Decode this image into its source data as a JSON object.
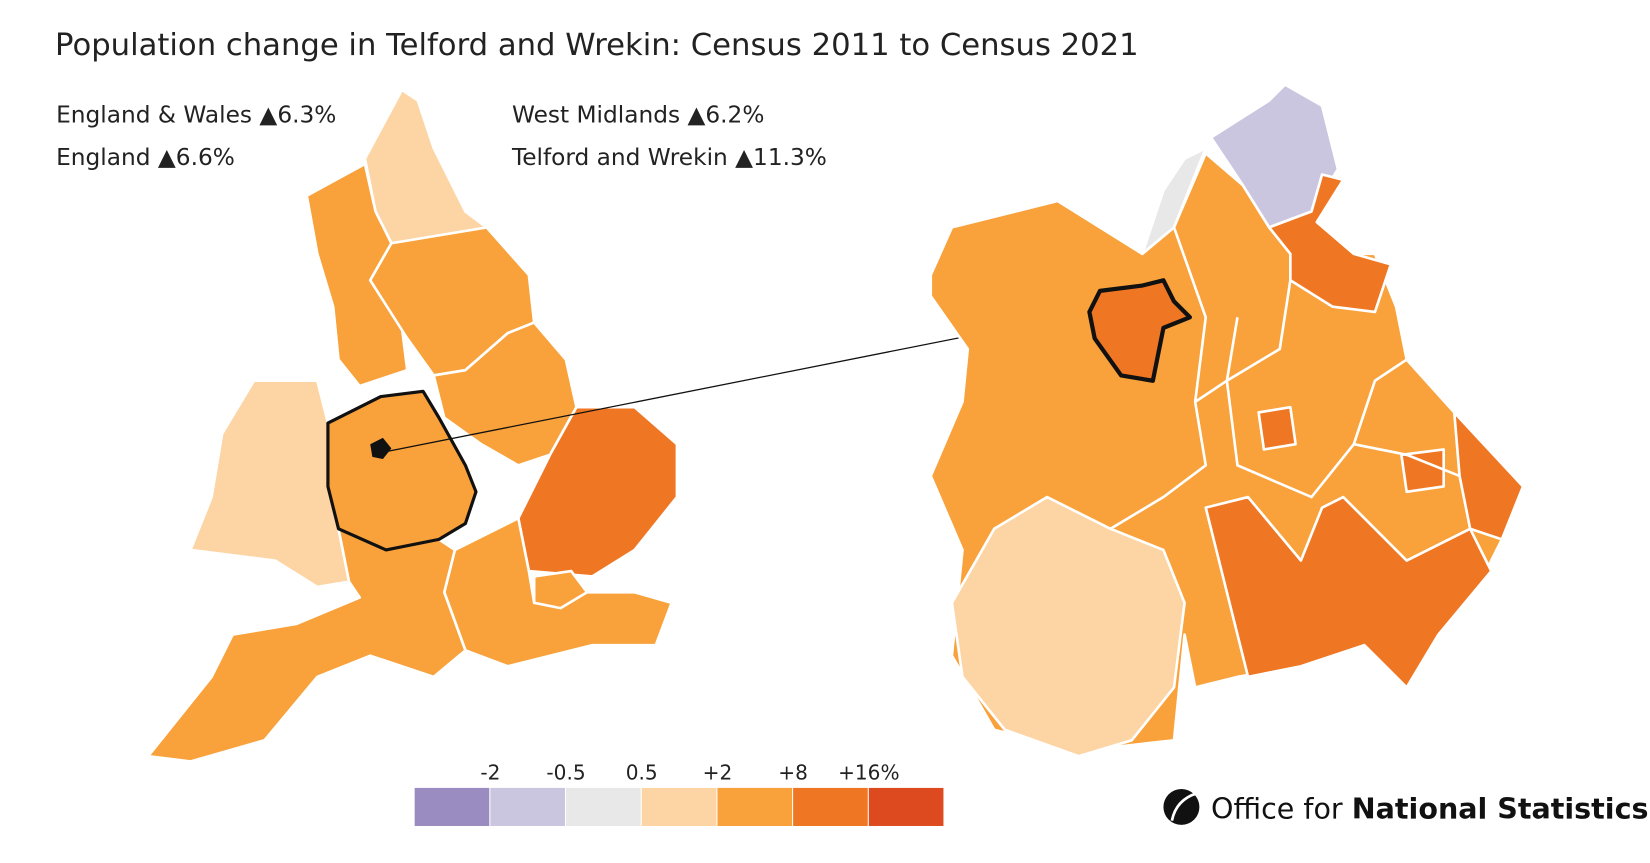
{
  "title": "Population change in Telford and Wrekin: Census 2011 to Census 2021",
  "stats": [
    {
      "name": "England & Wales",
      "value": 6.3,
      "label": "▲6.3%"
    },
    {
      "name": "England",
      "value": 6.6,
      "label": "▲6.6%"
    },
    {
      "name": "West Midlands",
      "value": 6.2,
      "label": "▲6.2%"
    },
    {
      "name": "Telford and Wrekin",
      "value": 11.3,
      "label": "▲11.3%"
    }
  ],
  "legend": {
    "breaks": [
      -2,
      -0.5,
      0.5,
      {
        "value": 2,
        "label": "+2"
      },
      {
        "value": 8,
        "label": "+8"
      },
      {
        "value": 16,
        "label": "+16%"
      }
    ],
    "colors": [
      "#9a8bc0",
      "#cbc6e0",
      "#e8e8e8",
      "#fdd4a4",
      "#f9a13a",
      "#ef7622",
      "#de4a1f"
    ]
  },
  "logo": {
    "prefix": "Office for",
    "name": "National Statistics"
  }
}
